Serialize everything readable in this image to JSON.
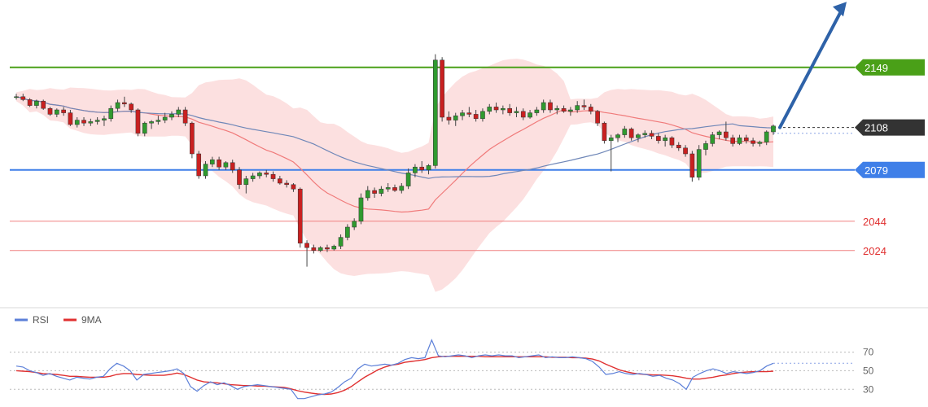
{
  "chart_data": [
    {
      "type": "candlestick",
      "price_range": [
        1985,
        2195
      ],
      "levels": [
        {
          "name": "resistance",
          "value": 2149,
          "label": "2149",
          "color": "#4aa018",
          "style": "solid",
          "badge": true
        },
        {
          "name": "current",
          "value": 2108,
          "label": "2108",
          "color": "#333333",
          "style": "dotted",
          "badge": true
        },
        {
          "name": "pivot",
          "value": 2079,
          "label": "2079",
          "color": "#3f7fe8",
          "style": "solid",
          "badge": true
        },
        {
          "name": "support-1",
          "value": 2044,
          "label": "2044",
          "color": "#f08080",
          "style": "solid",
          "badge": false
        },
        {
          "name": "support-2",
          "value": 2024,
          "label": "2024",
          "color": "#f08080",
          "style": "solid",
          "badge": false
        }
      ],
      "arrow": {
        "from_price": 2108,
        "to_price": 2196,
        "direction": "up",
        "color": "#2e62a8"
      },
      "colors": {
        "up": "#2f9a2f",
        "down": "#c92020",
        "band": "#fcdada",
        "ma_fast": "#f07a7a",
        "ma_slow": "#6f87b8"
      },
      "candles": [
        [
          2129,
          2131,
          2127,
          2129
        ],
        [
          2129,
          2131,
          2126,
          2127
        ],
        [
          2127,
          2128,
          2122,
          2123
        ],
        [
          2123,
          2127,
          2121,
          2126
        ],
        [
          2126,
          2127,
          2120,
          2121
        ],
        [
          2121,
          2122,
          2116,
          2117
        ],
        [
          2117,
          2121,
          2115,
          2120
        ],
        [
          2120,
          2122,
          2116,
          2118
        ],
        [
          2118,
          2120,
          2109,
          2110
        ],
        [
          2110,
          2115,
          2108,
          2113
        ],
        [
          2113,
          2115,
          2109,
          2111
        ],
        [
          2111,
          2114,
          2109,
          2112
        ],
        [
          2112,
          2115,
          2110,
          2113
        ],
        [
          2113,
          2116,
          2109,
          2114
        ],
        [
          2114,
          2123,
          2112,
          2121
        ],
        [
          2121,
          2127,
          2119,
          2125
        ],
        [
          2125,
          2129,
          2122,
          2124
        ],
        [
          2124,
          2125,
          2118,
          2120
        ],
        [
          2120,
          2121,
          2102,
          2104
        ],
        [
          2104,
          2112,
          2102,
          2111
        ],
        [
          2111,
          2113,
          2107,
          2112
        ],
        [
          2112,
          2116,
          2110,
          2113
        ],
        [
          2113,
          2118,
          2111,
          2115
        ],
        [
          2115,
          2119,
          2113,
          2117
        ],
        [
          2117,
          2122,
          2115,
          2120
        ],
        [
          2120,
          2122,
          2109,
          2111
        ],
        [
          2111,
          2112,
          2087,
          2090
        ],
        [
          2090,
          2092,
          2073,
          2075
        ],
        [
          2075,
          2085,
          2073,
          2083
        ],
        [
          2083,
          2088,
          2081,
          2086
        ],
        [
          2086,
          2088,
          2079,
          2081
        ],
        [
          2081,
          2085,
          2079,
          2084
        ],
        [
          2084,
          2086,
          2077,
          2079
        ],
        [
          2079,
          2081,
          2066,
          2069
        ],
        [
          2069,
          2075,
          2063,
          2073
        ],
        [
          2073,
          2077,
          2071,
          2075
        ],
        [
          2075,
          2078,
          2073,
          2077
        ],
        [
          2077,
          2079,
          2074,
          2076
        ],
        [
          2076,
          2078,
          2071,
          2073
        ],
        [
          2073,
          2075,
          2069,
          2070
        ],
        [
          2070,
          2072,
          2067,
          2069
        ],
        [
          2069,
          2070,
          2064,
          2066
        ],
        [
          2066,
          2067,
          2026,
          2029
        ],
        [
          2029,
          2031,
          2013,
          2026
        ],
        [
          2026,
          2028,
          2022,
          2024
        ],
        [
          2024,
          2027,
          2023,
          2026
        ],
        [
          2026,
          2028,
          2023,
          2025
        ],
        [
          2025,
          2028,
          2024,
          2027
        ],
        [
          2027,
          2035,
          2025,
          2033
        ],
        [
          2033,
          2042,
          2031,
          2040
        ],
        [
          2040,
          2046,
          2038,
          2044
        ],
        [
          2044,
          2063,
          2042,
          2060
        ],
        [
          2060,
          2068,
          2058,
          2065
        ],
        [
          2065,
          2067,
          2060,
          2063
        ],
        [
          2063,
          2068,
          2061,
          2066
        ],
        [
          2066,
          2070,
          2064,
          2067
        ],
        [
          2067,
          2069,
          2064,
          2065
        ],
        [
          2065,
          2070,
          2063,
          2068
        ],
        [
          2068,
          2080,
          2066,
          2077
        ],
        [
          2077,
          2083,
          2074,
          2081
        ],
        [
          2081,
          2085,
          2077,
          2079
        ],
        [
          2079,
          2083,
          2076,
          2082
        ],
        [
          2082,
          2158,
          2080,
          2154
        ],
        [
          2154,
          2156,
          2112,
          2115
        ],
        [
          2115,
          2119,
          2110,
          2113
        ],
        [
          2113,
          2118,
          2109,
          2116
        ],
        [
          2116,
          2120,
          2113,
          2118
        ],
        [
          2118,
          2122,
          2115,
          2117
        ],
        [
          2117,
          2120,
          2112,
          2114
        ],
        [
          2114,
          2121,
          2112,
          2119
        ],
        [
          2119,
          2124,
          2117,
          2122
        ],
        [
          2122,
          2125,
          2118,
          2120
        ],
        [
          2120,
          2123,
          2117,
          2121
        ],
        [
          2121,
          2124,
          2116,
          2118
        ],
        [
          2118,
          2122,
          2115,
          2119
        ],
        [
          2119,
          2121,
          2113,
          2115
        ],
        [
          2115,
          2120,
          2114,
          2118
        ],
        [
          2118,
          2122,
          2116,
          2120
        ],
        [
          2120,
          2127,
          2118,
          2125
        ],
        [
          2125,
          2127,
          2118,
          2120
        ],
        [
          2120,
          2123,
          2117,
          2121
        ],
        [
          2121,
          2123,
          2118,
          2119
        ],
        [
          2119,
          2122,
          2116,
          2120
        ],
        [
          2120,
          2126,
          2118,
          2123
        ],
        [
          2123,
          2127,
          2120,
          2122
        ],
        [
          2122,
          2124,
          2117,
          2119
        ],
        [
          2119,
          2120,
          2109,
          2111
        ],
        [
          2111,
          2112,
          2097,
          2099
        ],
        [
          2099,
          2103,
          2078,
          2101
        ],
        [
          2101,
          2104,
          2098,
          2103
        ],
        [
          2103,
          2109,
          2101,
          2107
        ],
        [
          2107,
          2108,
          2099,
          2101
        ],
        [
          2101,
          2104,
          2098,
          2103
        ],
        [
          2103,
          2106,
          2101,
          2104
        ],
        [
          2104,
          2106,
          2100,
          2102
        ],
        [
          2102,
          2104,
          2097,
          2099
        ],
        [
          2099,
          2103,
          2095,
          2101
        ],
        [
          2101,
          2102,
          2094,
          2096
        ],
        [
          2096,
          2098,
          2092,
          2094
        ],
        [
          2094,
          2096,
          2088,
          2090
        ],
        [
          2090,
          2092,
          2071,
          2074
        ],
        [
          2074,
          2096,
          2072,
          2093
        ],
        [
          2093,
          2099,
          2089,
          2097
        ],
        [
          2097,
          2105,
          2095,
          2103
        ],
        [
          2103,
          2106,
          2100,
          2105
        ],
        [
          2105,
          2112,
          2099,
          2101
        ],
        [
          2101,
          2103,
          2095,
          2097
        ],
        [
          2097,
          2103,
          2096,
          2101
        ],
        [
          2101,
          2103,
          2097,
          2099
        ],
        [
          2099,
          2101,
          2095,
          2097
        ],
        [
          2097,
          2099,
          2095,
          2098
        ],
        [
          2098,
          2106,
          2096,
          2105
        ],
        [
          2105,
          2110,
          2103,
          2109
        ]
      ]
    },
    {
      "type": "line",
      "legend": [
        {
          "name": "RSI",
          "color": "#5b7fd8"
        },
        {
          "name": "9MA",
          "color": "#e03030"
        }
      ],
      "yticks": [
        70,
        50,
        30
      ],
      "ylim": [
        18,
        88
      ],
      "rsi": [
        55,
        54,
        50,
        48,
        45,
        47,
        44,
        42,
        40,
        43,
        42,
        41,
        43,
        44,
        52,
        58,
        55,
        50,
        40,
        46,
        47,
        48,
        49,
        50,
        52,
        47,
        33,
        28,
        34,
        38,
        35,
        37,
        34,
        30,
        33,
        34,
        35,
        34,
        33,
        32,
        31,
        30,
        20,
        20,
        22,
        24,
        25,
        27,
        32,
        38,
        42,
        52,
        57,
        55,
        56,
        57,
        56,
        58,
        62,
        64,
        63,
        64,
        83,
        66,
        65,
        66,
        67,
        66,
        64,
        66,
        67,
        66,
        67,
        66,
        66,
        64,
        65,
        66,
        67,
        64,
        65,
        64,
        64,
        65,
        64,
        63,
        60,
        54,
        46,
        47,
        49,
        47,
        46,
        47,
        46,
        44,
        45,
        42,
        40,
        36,
        30,
        43,
        47,
        50,
        52,
        50,
        47,
        49,
        48,
        47,
        48,
        50,
        55,
        58
      ],
      "ma9": [
        50,
        49.5,
        49,
        48,
        47,
        46.5,
        46,
        45,
        44,
        44,
        43.5,
        43,
        43,
        43,
        44,
        46,
        47,
        47,
        46,
        45.5,
        45,
        45,
        45,
        46,
        47.5,
        46,
        43,
        40,
        38,
        37.5,
        37,
        36,
        35,
        34.5,
        34,
        34,
        33.5,
        33.5,
        33,
        32.5,
        32,
        30.5,
        28.5,
        27,
        26,
        25,
        24.5,
        25,
        26.5,
        29,
        33,
        38,
        43,
        47,
        51,
        54,
        56,
        57,
        59,
        60,
        61,
        62,
        64,
        65,
        65.5,
        65.5,
        65.5,
        65.5,
        65.5,
        65.5,
        65,
        65,
        65,
        65,
        65,
        65,
        65,
        65,
        65,
        65,
        64.5,
        64.5,
        64.5,
        64,
        64,
        63.5,
        62.5,
        60.5,
        57,
        54,
        51,
        49,
        47.5,
        46.5,
        46,
        45.5,
        45.5,
        45,
        44.5,
        43.5,
        42,
        41,
        41,
        42,
        43,
        44.5,
        45.5,
        47,
        48,
        48.5,
        49,
        49,
        49,
        49.5
      ]
    }
  ]
}
